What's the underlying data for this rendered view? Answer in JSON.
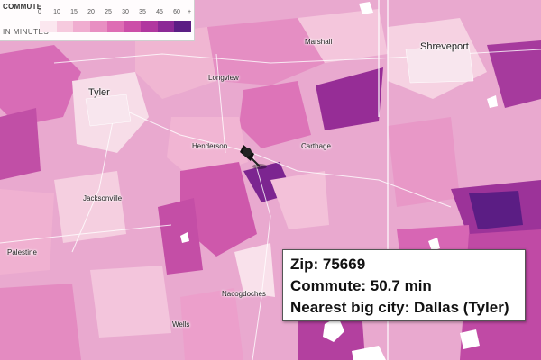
{
  "legend": {
    "title": "COMMUTE",
    "subtitle": "IN MINUTES",
    "ticks": [
      "0",
      "10",
      "15",
      "20",
      "25",
      "30",
      "35",
      "45",
      "60",
      "+"
    ],
    "colors": [
      "#fbe7ef",
      "#f6cade",
      "#f0add0",
      "#e88fc2",
      "#de6db4",
      "#cc4ea8",
      "#b1379f",
      "#8c2896",
      "#5b1d84"
    ]
  },
  "cities": {
    "marshall": "Marshall",
    "shreveport": "Shreveport",
    "longview": "Longview",
    "tyler": "Tyler",
    "henderson": "Henderson",
    "carthage": "Carthage",
    "jacksonville": "Jacksonville",
    "palestine": "Palestine",
    "nacogdoches": "Nacogdoches",
    "wells": "Wells"
  },
  "info": {
    "zip_line": "Zip: 75669",
    "commute_line": "Commute: 50.7 min",
    "city_line": "Nearest big city: Dallas (Tyler)"
  },
  "highlight": {
    "zip": "75669",
    "commute_minutes": 50.7
  }
}
